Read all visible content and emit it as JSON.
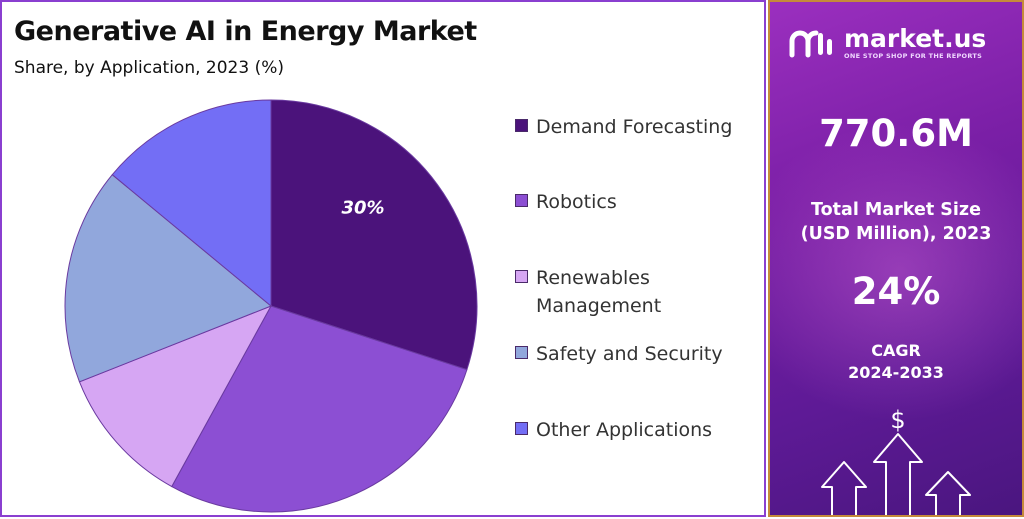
{
  "header": {
    "title": "Generative AI in Energy Market",
    "subtitle": "Share, by Application, 2023 (%)"
  },
  "chart_data": {
    "type": "pie",
    "title": "Generative AI in Energy Market",
    "subtitle": "Share, by Application, 2023 (%)",
    "categories": [
      "Demand Forecasting",
      "Robotics",
      "Renewables Management",
      "Safety and Security",
      "Other Applications"
    ],
    "values": [
      30,
      28,
      11,
      17,
      14
    ],
    "colors": [
      "#4b137b",
      "#8c4fd3",
      "#d6a6f3",
      "#91a7dc",
      "#736ef5"
    ],
    "data_labels": [
      "30%",
      "",
      "",
      "",
      ""
    ],
    "start_angle_deg": 0,
    "direction": "clockwise",
    "legend_position": "right"
  },
  "legend": {
    "items": [
      {
        "label": "Demand Forecasting",
        "color": "#4b137b"
      },
      {
        "label": "Robotics",
        "color": "#8c4fd3"
      },
      {
        "label": "Renewables Management",
        "color": "#d6a6f3"
      },
      {
        "label": "Safety and Security",
        "color": "#91a7dc"
      },
      {
        "label": "Other Applications",
        "color": "#736ef5"
      }
    ]
  },
  "sidebar": {
    "brand_name": "market.us",
    "brand_tagline": "ONE STOP SHOP FOR THE REPORTS",
    "logo_icon": "market-us-logo-icon",
    "market_size_value": "770.6M",
    "market_size_label_line1": "Total Market Size",
    "market_size_label_line2": "(USD Million), 2023",
    "cagr_value": "24%",
    "cagr_label_line1": "CAGR",
    "cagr_label_line2": "2024-2033",
    "currency_symbol": "$",
    "decor_icon": "growth-arrows-icon"
  }
}
